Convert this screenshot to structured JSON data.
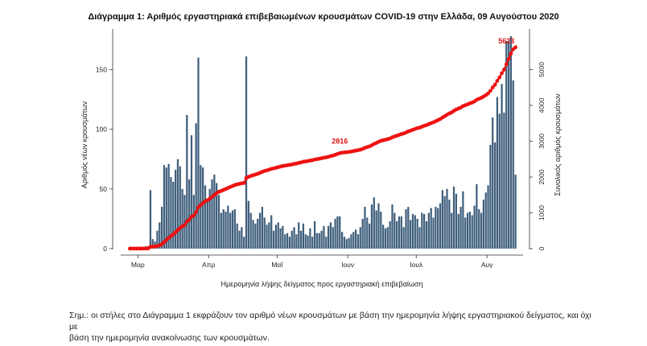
{
  "chart_data": {
    "type": "bar+line",
    "title": "Διάγραμμα 1: Αριθμός εργαστηριακά επιβεβαιωμένων κρουσμάτων COVID-19 στην Ελλάδα, 09 Αυγούστου 2020",
    "xlabel": "Ημερομηνία λήψης δείγματος προς εργαστηριακή επιβεβαίωση",
    "ylabel_left": "Αριθμός νέων κρουσμάτων",
    "ylabel_right": "Συνολικός αριθμός κρουσμάτων",
    "x_ticks": [
      "Μαρ",
      "Απρ",
      "Μαΐ",
      "Ιουν",
      "Ιουλ",
      "Αυγ"
    ],
    "y_left_ticks": [
      0,
      50,
      100,
      150
    ],
    "y_left_lim": [
      0,
      180
    ],
    "y_right_ticks": [
      0,
      1000,
      2000,
      3000,
      4000,
      5000
    ],
    "y_right_lim": [
      0,
      6000
    ],
    "grid": false,
    "start_date": "2020-02-26",
    "colors": {
      "bars": "#3f5f7c",
      "line": "#ee1111",
      "annotation": "#dd1111"
    },
    "annotations": [
      {
        "date": "2020-05-28",
        "value": 2816,
        "text": "2816"
      },
      {
        "date": "2020-08-09",
        "value": 5623,
        "text": "5623"
      }
    ],
    "series": [
      {
        "name": "Νέα κρούσματα",
        "kind": "bar",
        "axis": "left",
        "values": [
          1,
          0,
          1,
          0,
          0,
          1,
          1,
          2,
          2,
          49,
          8,
          6,
          15,
          22,
          35,
          70,
          68,
          71,
          60,
          56,
          66,
          75,
          69,
          50,
          45,
          112,
          58,
          95,
          45,
          105,
          160,
          70,
          68,
          53,
          42,
          50,
          58,
          62,
          55,
          45,
          30,
          33,
          31,
          36,
          30,
          32,
          33,
          21,
          15,
          18,
          10,
          161,
          40,
          30,
          24,
          21,
          25,
          30,
          35,
          26,
          20,
          22,
          28,
          15,
          20,
          22,
          17,
          19,
          12,
          13,
          10,
          15,
          18,
          12,
          22,
          15,
          21,
          12,
          11,
          17,
          10,
          23,
          13,
          13,
          15,
          19,
          10,
          19,
          22,
          18,
          25,
          27,
          27,
          14,
          10,
          8,
          9,
          12,
          14,
          16,
          12,
          18,
          25,
          35,
          26,
          21,
          37,
          43,
          32,
          38,
          31,
          20,
          17,
          18,
          23,
          37,
          30,
          23,
          27,
          27,
          18,
          33,
          35,
          24,
          29,
          28,
          25,
          18,
          30,
          29,
          23,
          30,
          34,
          26,
          35,
          34,
          38,
          49,
          44,
          50,
          41,
          30,
          52,
          46,
          29,
          35,
          48,
          26,
          30,
          31,
          28,
          36,
          54,
          33,
          30,
          41,
          47,
          53,
          87,
          110,
          89,
          127,
          113,
          138,
          114,
          174,
          174,
          178,
          141,
          62
        ]
      },
      {
        "name": "Συνολικά κρούσματα",
        "kind": "line",
        "axis": "right"
      }
    ]
  },
  "note": {
    "line1": "Σημ.: οι στήλες στο Διάγραμμα 1 εκφράζουν τον αριθμό νέων κρουσμάτων με βάση την ημερομηνία λήψης εργαστηριακού δείγματος, και όχι με",
    "line2": "βάση την ημερομηνία ανακοίνωσης των κρουσμάτων."
  }
}
